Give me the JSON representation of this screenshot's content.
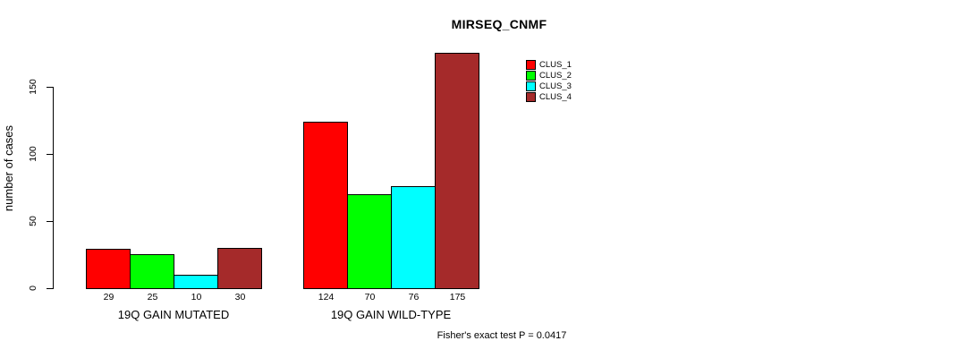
{
  "chart_data": {
    "type": "bar",
    "title": "MIRSEQ_CNMF",
    "ylabel": "number of cases",
    "ylim": [
      0,
      175
    ],
    "yticks": [
      0,
      50,
      100,
      150
    ],
    "grid": false,
    "legend_position": "top-right-inside",
    "categories": [
      "19Q GAIN MUTATED",
      "19Q GAIN WILD-TYPE"
    ],
    "series": [
      {
        "name": "CLUS_1",
        "color": "#FF0000",
        "values": [
          29,
          124
        ]
      },
      {
        "name": "CLUS_2",
        "color": "#00FF00",
        "values": [
          25,
          70
        ]
      },
      {
        "name": "CLUS_3",
        "color": "#00FFFF",
        "values": [
          10,
          76
        ]
      },
      {
        "name": "CLUS_4",
        "color": "#A52A2A",
        "values": [
          30,
          175
        ]
      }
    ],
    "groups": [
      {
        "label": "19Q GAIN MUTATED",
        "values": [
          29,
          25,
          10,
          30
        ]
      },
      {
        "label": "19Q GAIN WILD-TYPE",
        "values": [
          124,
          70,
          76,
          175
        ]
      }
    ],
    "annotation": "Fisher's exact test P = 0.0417"
  }
}
